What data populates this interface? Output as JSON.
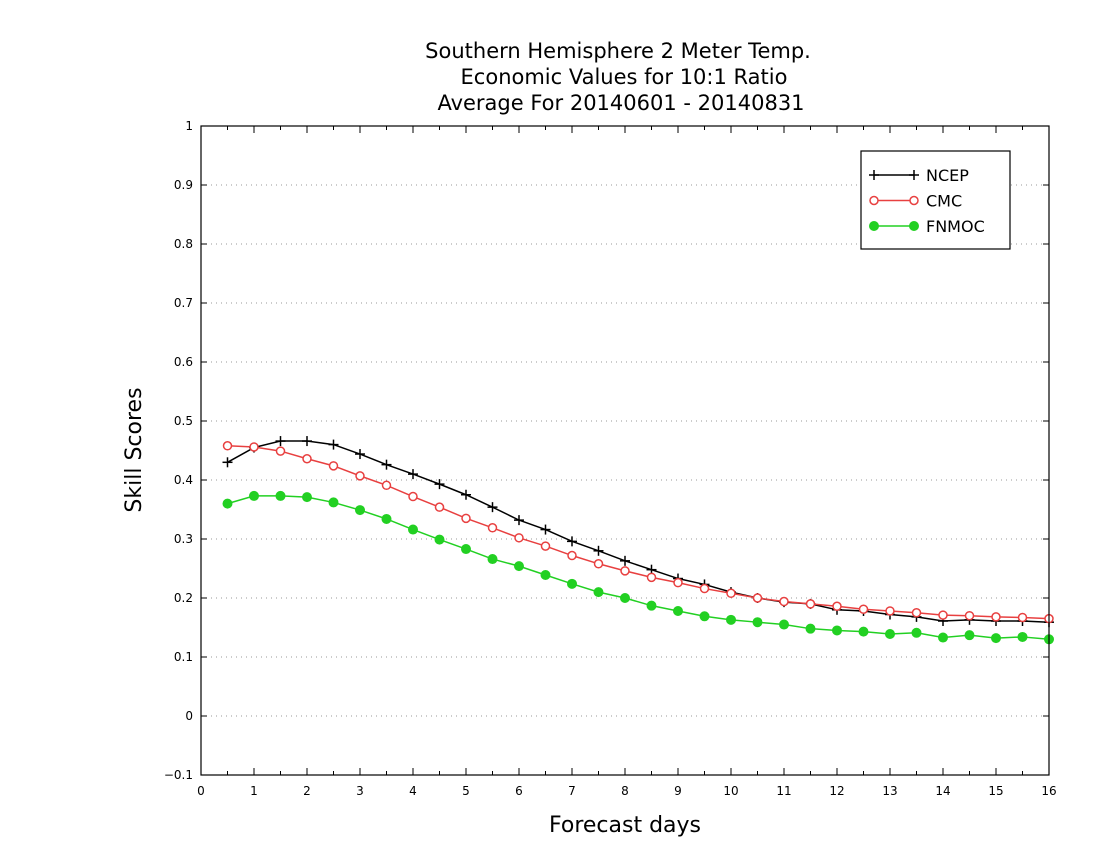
{
  "chart_data": {
    "type": "line",
    "title_lines": [
      "Southern Hemisphere 2 Meter Temp.",
      "Economic Values for 10:1 Ratio",
      "Average For 20140601 - 20140831"
    ],
    "xlabel": "Forecast days",
    "ylabel": "Skill Scores",
    "xlim": [
      0,
      16
    ],
    "ylim": [
      -0.1,
      1
    ],
    "x_ticks": [
      "0",
      "1",
      "2",
      "3",
      "4",
      "5",
      "6",
      "7",
      "8",
      "9",
      "10",
      "11",
      "12",
      "13",
      "14",
      "15",
      "16"
    ],
    "y_ticks": [
      "−0.1",
      "0",
      "0.1",
      "0.2",
      "0.3",
      "0.4",
      "0.5",
      "0.6",
      "0.7",
      "0.8",
      "0.9",
      "1"
    ],
    "grid": true,
    "legend_position": "top-right",
    "x": [
      0.5,
      1,
      1.5,
      2,
      2.5,
      3,
      3.5,
      4,
      4.5,
      5,
      5.5,
      6,
      6.5,
      7,
      7.5,
      8,
      8.5,
      9,
      9.5,
      10,
      10.5,
      11,
      11.5,
      12,
      12.5,
      13,
      13.5,
      14,
      14.5,
      15,
      15.5,
      16
    ],
    "series": [
      {
        "name": "NCEP",
        "color": "#000000",
        "marker": "plus",
        "values": [
          0.43,
          0.455,
          0.466,
          0.466,
          0.46,
          0.444,
          0.426,
          0.41,
          0.393,
          0.375,
          0.354,
          0.332,
          0.316,
          0.296,
          0.28,
          0.263,
          0.248,
          0.233,
          0.223,
          0.21,
          0.2,
          0.193,
          0.19,
          0.18,
          0.178,
          0.172,
          0.168,
          0.161,
          0.163,
          0.161,
          0.161,
          0.159
        ]
      },
      {
        "name": "CMC",
        "color": "#e84040",
        "marker": "open-circle",
        "values": [
          0.458,
          0.456,
          0.449,
          0.436,
          0.424,
          0.407,
          0.391,
          0.372,
          0.354,
          0.335,
          0.319,
          0.302,
          0.288,
          0.272,
          0.258,
          0.246,
          0.235,
          0.226,
          0.216,
          0.208,
          0.2,
          0.194,
          0.19,
          0.186,
          0.181,
          0.178,
          0.175,
          0.171,
          0.17,
          0.168,
          0.167,
          0.165
        ]
      },
      {
        "name": "FNMOC",
        "color": "#22d022",
        "marker": "filled-circle",
        "values": [
          0.36,
          0.373,
          0.373,
          0.371,
          0.362,
          0.349,
          0.334,
          0.316,
          0.299,
          0.283,
          0.266,
          0.254,
          0.239,
          0.224,
          0.21,
          0.2,
          0.187,
          0.178,
          0.169,
          0.163,
          0.159,
          0.155,
          0.148,
          0.145,
          0.143,
          0.139,
          0.141,
          0.133,
          0.137,
          0.132,
          0.134,
          0.13
        ]
      }
    ]
  }
}
